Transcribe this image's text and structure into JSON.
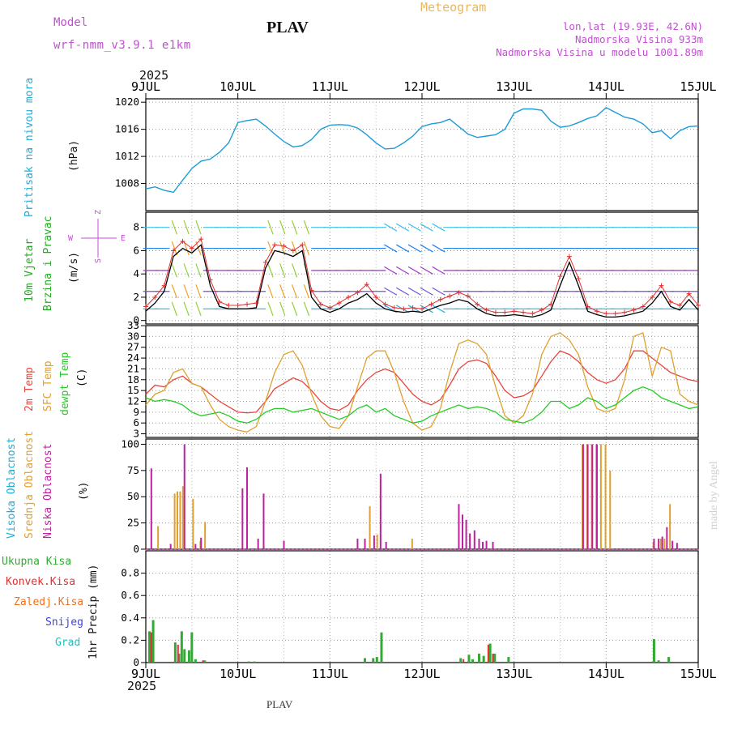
{
  "header": {
    "model_label": "Model",
    "model_name": "wrf-nmm_v3.9.1 e1km",
    "station": "PLAV",
    "meteogram": "Meteogram",
    "lonlat": "lon,lat (19.93E, 42.6N)",
    "altitude": "Nadmorska Visina 933m",
    "model_altitude": "Nadmorska Visina u modelu 1001.89m",
    "year_top": "2025",
    "year_bottom": "2025",
    "footer": "PLAV",
    "credit": "made by Angel"
  },
  "colors": {
    "pressure": "#1e9bd7",
    "wind_label": "#22aa22",
    "t2m": "#e8453c",
    "sfc": "#e0a030",
    "dew": "#22cc22",
    "high_cloud": "#1aaed8",
    "mid_cloud": "#e0a030",
    "low_cloud": "#c020a0",
    "total_rain": "#33aa33",
    "conv_rain": "#e03030",
    "frozen": "#f07020",
    "snow": "#4040e0",
    "hail": "#20c0c0",
    "label_purple": "#c050d0",
    "header_orange": "#e8b860"
  },
  "time_axis": {
    "labels": [
      "9JUL",
      "10JUL",
      "11JUL",
      "12JUL",
      "13JUL",
      "14JUL",
      "15JUL"
    ],
    "days": 6
  },
  "panel_labels": {
    "pressure": [
      "Pritisak na nivou mora",
      "(hPa)"
    ],
    "wind": [
      "10m Vjetar",
      "Brzina i Pravac",
      "(m/s)"
    ],
    "wind_rose": [
      "Z",
      "W",
      "E",
      "S"
    ],
    "temp": [
      "2m Temp",
      "SFC Temp",
      "dewpt Temp",
      "(C)"
    ],
    "cloud": [
      "Visoka Oblacnost",
      "Srednja Oblacnost",
      "Niska Oblacnost",
      "(%)"
    ],
    "precip_unit": "1hr Precip (mm)",
    "precip_legend": [
      "Ukupna Kisa",
      "Konvek.Kisa",
      "Zaledj.Kisa",
      "Snijeg",
      "Grad"
    ]
  },
  "chart_data": [
    {
      "type": "line",
      "name": "pressure",
      "ylabel": "(hPa)",
      "ylim": [
        1004,
        1020.5
      ],
      "yticks": [
        1008,
        1012,
        1016,
        1020
      ],
      "x": [
        0,
        0.1,
        0.2,
        0.3,
        0.4,
        0.5,
        0.6,
        0.7,
        0.8,
        0.9,
        1.0,
        1.1,
        1.2,
        1.3,
        1.4,
        1.5,
        1.6,
        1.7,
        1.8,
        1.9,
        2.0,
        2.1,
        2.2,
        2.3,
        2.4,
        2.5,
        2.6,
        2.7,
        2.8,
        2.9,
        3.0,
        3.1,
        3.2,
        3.3,
        3.4,
        3.5,
        3.6,
        3.7,
        3.8,
        3.9,
        4.0,
        4.1,
        4.2,
        4.3,
        4.4,
        4.5,
        4.6,
        4.7,
        4.8,
        4.9,
        5.0,
        5.1,
        5.2,
        5.3,
        5.4,
        5.5,
        5.6,
        5.7,
        5.8,
        5.9,
        6.0
      ],
      "values": [
        1007.2,
        1007.5,
        1007.0,
        1006.7,
        1008.5,
        1010.2,
        1011.3,
        1011.6,
        1012.6,
        1014.0,
        1017.0,
        1017.3,
        1017.5,
        1016.5,
        1015.3,
        1014.2,
        1013.4,
        1013.6,
        1014.5,
        1016.0,
        1016.6,
        1016.7,
        1016.6,
        1016.2,
        1015.2,
        1014.0,
        1013.1,
        1013.2,
        1014.0,
        1015.0,
        1016.4,
        1016.8,
        1017.0,
        1017.5,
        1016.4,
        1015.3,
        1014.8,
        1015.0,
        1015.2,
        1016.0,
        1018.4,
        1019.0,
        1019.0,
        1018.8,
        1017.2,
        1016.3,
        1016.5,
        1017.0,
        1017.6,
        1018.0,
        1019.2,
        1018.5,
        1017.8,
        1017.5,
        1016.8,
        1015.5,
        1015.8,
        1014.6,
        1015.8,
        1016.4,
        1016.5
      ]
    },
    {
      "type": "line",
      "name": "wind",
      "ylabel": "(m/s)",
      "ylim": [
        -0.3,
        9.3
      ],
      "yticks": [
        0,
        2,
        4,
        6,
        8
      ],
      "series": [
        {
          "key": "black",
          "x": [
            0,
            0.1,
            0.2,
            0.3,
            0.4,
            0.5,
            0.6,
            0.7,
            0.8,
            0.9,
            1.0,
            1.1,
            1.2,
            1.3,
            1.4,
            1.5,
            1.6,
            1.7,
            1.8,
            1.9,
            2.0,
            2.1,
            2.2,
            2.3,
            2.4,
            2.5,
            2.6,
            2.7,
            2.8,
            2.9,
            3.0,
            3.1,
            3.2,
            3.3,
            3.4,
            3.5,
            3.6,
            3.7,
            3.8,
            3.9,
            4.0,
            4.1,
            4.2,
            4.3,
            4.4,
            4.5,
            4.6,
            4.7,
            4.8,
            4.9,
            5.0,
            5.1,
            5.2,
            5.3,
            5.4,
            5.5,
            5.6,
            5.7,
            5.8,
            5.9,
            6.0
          ],
          "values": [
            0.8,
            1.5,
            2.5,
            5.5,
            6.2,
            5.8,
            6.5,
            3.0,
            1.2,
            1.0,
            1.0,
            1.0,
            1.1,
            4.5,
            6.0,
            5.8,
            5.5,
            6.0,
            2.0,
            1.0,
            0.7,
            1.0,
            1.5,
            1.8,
            2.3,
            1.5,
            1.0,
            0.8,
            0.7,
            0.8,
            0.7,
            1.0,
            1.3,
            1.5,
            1.8,
            1.6,
            1.0,
            0.6,
            0.4,
            0.4,
            0.5,
            0.4,
            0.3,
            0.5,
            0.9,
            3.0,
            5.0,
            3.0,
            0.8,
            0.5,
            0.3,
            0.3,
            0.4,
            0.6,
            0.8,
            1.5,
            2.5,
            1.2,
            0.9,
            1.8,
            0.9
          ]
        },
        {
          "key": "red",
          "x": [
            0,
            0.1,
            0.2,
            0.3,
            0.4,
            0.5,
            0.6,
            0.7,
            0.8,
            0.9,
            1.0,
            1.1,
            1.2,
            1.3,
            1.4,
            1.5,
            1.6,
            1.7,
            1.8,
            1.9,
            2.0,
            2.1,
            2.2,
            2.3,
            2.4,
            2.5,
            2.6,
            2.7,
            2.8,
            2.9,
            3.0,
            3.1,
            3.2,
            3.3,
            3.4,
            3.5,
            3.6,
            3.7,
            3.8,
            3.9,
            4.0,
            4.1,
            4.2,
            4.3,
            4.4,
            4.5,
            4.6,
            4.7,
            4.8,
            4.9,
            5.0,
            5.1,
            5.2,
            5.3,
            5.4,
            5.5,
            5.6,
            5.7,
            5.8,
            5.9,
            6.0
          ],
          "values": [
            1.2,
            2.0,
            3.0,
            6.0,
            6.8,
            6.2,
            7.0,
            3.5,
            1.6,
            1.3,
            1.3,
            1.4,
            1.5,
            5.0,
            6.5,
            6.4,
            6.0,
            6.5,
            2.6,
            1.4,
            1.1,
            1.5,
            2.0,
            2.4,
            3.1,
            2.0,
            1.4,
            1.1,
            1.0,
            1.1,
            1.0,
            1.4,
            1.8,
            2.1,
            2.4,
            2.1,
            1.4,
            0.9,
            0.7,
            0.7,
            0.8,
            0.7,
            0.6,
            0.9,
            1.4,
            3.8,
            5.5,
            3.6,
            1.2,
            0.8,
            0.6,
            0.6,
            0.7,
            0.9,
            1.2,
            2.0,
            3.0,
            1.6,
            1.3,
            2.3,
            1.3
          ]
        }
      ]
    },
    {
      "type": "line",
      "name": "temperature",
      "ylabel": "(C)",
      "ylim": [
        2,
        33
      ],
      "yticks": [
        3,
        6,
        9,
        12,
        15,
        18,
        21,
        24,
        27,
        30,
        33
      ],
      "x": [
        0,
        0.1,
        0.2,
        0.3,
        0.4,
        0.5,
        0.6,
        0.7,
        0.8,
        0.9,
        1.0,
        1.1,
        1.2,
        1.3,
        1.4,
        1.5,
        1.6,
        1.7,
        1.8,
        1.9,
        2.0,
        2.1,
        2.2,
        2.3,
        2.4,
        2.5,
        2.6,
        2.7,
        2.8,
        2.9,
        3.0,
        3.1,
        3.2,
        3.3,
        3.4,
        3.5,
        3.6,
        3.7,
        3.8,
        3.9,
        4.0,
        4.1,
        4.2,
        4.3,
        4.4,
        4.5,
        4.6,
        4.7,
        4.8,
        4.9,
        5.0,
        5.1,
        5.2,
        5.3,
        5.4,
        5.5,
        5.6,
        5.7,
        5.8,
        5.9,
        6.0
      ],
      "series": [
        {
          "key": "t2m",
          "values": [
            14,
            16.5,
            16,
            18,
            19,
            17,
            16,
            14,
            12,
            10.5,
            9,
            8.8,
            9,
            12,
            15.5,
            17,
            18.5,
            17.5,
            15,
            12,
            10,
            9.5,
            11,
            15,
            18,
            20,
            21,
            20,
            17,
            14,
            12,
            11,
            12.5,
            16.5,
            21,
            23,
            23.5,
            22.5,
            19,
            15,
            13,
            13.5,
            15,
            19,
            23,
            26,
            25,
            23,
            20,
            18,
            17,
            18,
            21,
            26,
            26,
            24,
            22,
            20,
            19,
            18,
            17.5
          ]
        },
        {
          "key": "sfc",
          "values": [
            11,
            14,
            15,
            20,
            21,
            17,
            16,
            11,
            7,
            5,
            4,
            3.5,
            5,
            12,
            20,
            25,
            26,
            22,
            14,
            8,
            5,
            4.5,
            8,
            16,
            24,
            26,
            26,
            20,
            12,
            6,
            4,
            5,
            10,
            20,
            28,
            29,
            28,
            25,
            16,
            8,
            6,
            8,
            14,
            25,
            30,
            31,
            29,
            25,
            16,
            10,
            9,
            10,
            18,
            30,
            31,
            19,
            27,
            26,
            14,
            12,
            11
          ]
        },
        {
          "key": "dew",
          "values": [
            13,
            12,
            12.5,
            12,
            11,
            9,
            8,
            8.5,
            9,
            8,
            6.5,
            6,
            7,
            9,
            10,
            10,
            9,
            9.5,
            10,
            9,
            8,
            7,
            8,
            10,
            11,
            9,
            10,
            8,
            7,
            6,
            6.5,
            8,
            9,
            10,
            11,
            10,
            10.5,
            10,
            9,
            7,
            6.5,
            6,
            7,
            9,
            12,
            12,
            10,
            11,
            13,
            12,
            10,
            11,
            13,
            15,
            16,
            15,
            13,
            12,
            11,
            10,
            10.5
          ]
        }
      ]
    },
    {
      "type": "bar",
      "name": "cloud",
      "ylabel": "(%)",
      "ylim": [
        0,
        105
      ],
      "yticks": [
        0,
        25,
        50,
        75,
        100
      ],
      "series": [
        {
          "key": "high",
          "x": [
            4.76,
            4.81,
            4.86,
            4.91
          ],
          "values": [
            100,
            100,
            100,
            100
          ]
        },
        {
          "key": "mid",
          "x": [
            0.12,
            0.3,
            0.33,
            0.36,
            0.39,
            0.5,
            0.58,
            0.63,
            2.42,
            2.5,
            2.88,
            4.73,
            4.78,
            4.83,
            4.88,
            4.93,
            4.98,
            5.03,
            5.5,
            5.58,
            5.62,
            5.68
          ],
          "values": [
            22,
            53,
            55,
            55,
            60,
            48,
            8,
            26,
            41,
            14,
            10,
            100,
            100,
            100,
            100,
            100,
            100,
            75,
            7,
            10,
            10,
            43
          ]
        },
        {
          "key": "low",
          "x": [
            0.06,
            0.27,
            0.42,
            0.54,
            0.6,
            1.05,
            1.1,
            1.22,
            1.28,
            1.5,
            2.3,
            2.38,
            2.48,
            2.55,
            2.61,
            3.4,
            3.44,
            3.48,
            3.52,
            3.57,
            3.62,
            3.66,
            3.7,
            3.77,
            4.75,
            4.8,
            4.85,
            4.9,
            5.52,
            5.57,
            5.61,
            5.66,
            5.72,
            5.77
          ],
          "values": [
            77,
            5,
            100,
            5,
            11,
            58,
            78,
            10,
            53,
            8,
            10,
            10,
            13,
            72,
            7,
            43,
            33,
            28,
            15,
            18,
            10,
            7,
            8,
            7,
            100,
            100,
            100,
            100,
            10,
            10,
            12,
            21,
            8,
            6
          ]
        }
      ]
    },
    {
      "type": "bar",
      "name": "precipitation",
      "ylabel": "1hr Precip (mm)",
      "ylim": [
        0,
        1.0
      ],
      "yticks": [
        0,
        0.2,
        0.4,
        0.6,
        0.8
      ],
      "series": [
        {
          "key": "total",
          "x": [
            0.04,
            0.08,
            0.32,
            0.36,
            0.39,
            0.42,
            0.47,
            0.5,
            0.54,
            0.64,
            1.12,
            1.18,
            2.38,
            2.47,
            2.51,
            2.56,
            3.42,
            3.51,
            3.55,
            3.62,
            3.67,
            3.74,
            3.79,
            3.94,
            5.52,
            5.57,
            5.68
          ],
          "values": [
            0.28,
            0.38,
            0.18,
            0.08,
            0.28,
            0.12,
            0.11,
            0.27,
            0.03,
            0.02,
            0.01,
            0.01,
            0.04,
            0.04,
            0.05,
            0.27,
            0.04,
            0.07,
            0.03,
            0.08,
            0.06,
            0.17,
            0.08,
            0.05,
            0.21,
            0.02,
            0.05
          ]
        },
        {
          "key": "conv",
          "x": [
            0.06,
            0.35,
            0.62,
            3.45,
            3.72,
            3.77
          ],
          "values": [
            0.27,
            0.16,
            0.02,
            0.03,
            0.16,
            0.08
          ]
        }
      ]
    }
  ]
}
